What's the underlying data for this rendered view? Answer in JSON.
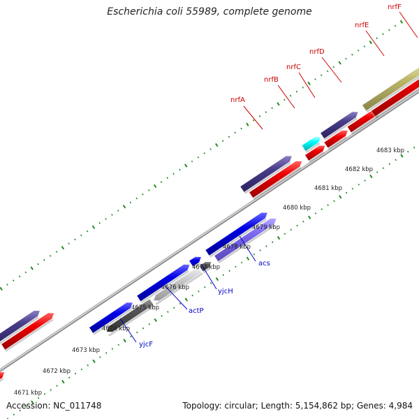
{
  "title": "Escherichia coli 55989, complete genome",
  "footer": {
    "accession": "Accession: NC_011748",
    "summary": "Topology: circular; Length: 5,154,862 bp; Genes: 4,984"
  },
  "colors": {
    "forward_red": "#ee0000",
    "dark_purple": "#4a3d8a",
    "blue": "#0000e6",
    "light_purple": "#7b68ee",
    "cyan": "#00ffff",
    "olive": "#bdb76b",
    "dark_grey": "#555555",
    "light_grey": "#cccccc",
    "tick_green": "#228b22",
    "backbone": "#999999"
  },
  "chart_data": {
    "type": "genome-map",
    "scale_labels": [
      "4671 kbp",
      "4672 kbp",
      "4673 kbp",
      "4674 kbp",
      "4675 kbp",
      "4676 kbp",
      "4677 kbp",
      "4678 kbp",
      "4679 kbp",
      "4680 kbp",
      "4681 kbp",
      "4682 kbp",
      "4683 kbp"
    ],
    "top_gene_labels": [
      "nrfA",
      "nrfB",
      "nrfC",
      "nrfD",
      "nrfE",
      "nrfF"
    ],
    "bottom_gene_labels": [
      "yjcF",
      "actP",
      "yjcH",
      "acs"
    ]
  }
}
